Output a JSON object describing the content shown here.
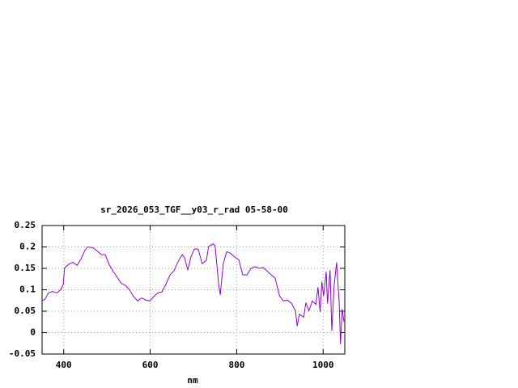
{
  "chart_data": {
    "type": "line",
    "title": "sr_2026_053_TGF__y03_r_rad 05-58-00",
    "x_label": "nm",
    "x": [
      350,
      356,
      365,
      374,
      384,
      393,
      399,
      402,
      412,
      421,
      431,
      440,
      449,
      455,
      468,
      477,
      487,
      496,
      505,
      515,
      524,
      533,
      543,
      552,
      561,
      571,
      580,
      590,
      599,
      608,
      618,
      627,
      636,
      646,
      655,
      664,
      674,
      679,
      687,
      694,
      702,
      711,
      720,
      730,
      735,
      745,
      750,
      758,
      762,
      769,
      777,
      786,
      796,
      805,
      814,
      824,
      833,
      843,
      852,
      861,
      870,
      880,
      889,
      899,
      908,
      917,
      927,
      936,
      940,
      945,
      955,
      960,
      967,
      975,
      983,
      988,
      993,
      997,
      1001,
      1007,
      1010,
      1016,
      1020,
      1025,
      1031,
      1037,
      1040,
      1044,
      1048
    ],
    "series": [
      {
        "color": "#9400d3",
        "values": [
          0.075,
          0.077,
          0.093,
          0.096,
          0.093,
          0.1,
          0.113,
          0.151,
          0.16,
          0.164,
          0.157,
          0.172,
          0.192,
          0.2,
          0.198,
          0.191,
          0.182,
          0.182,
          0.159,
          0.142,
          0.129,
          0.115,
          0.11,
          0.1,
          0.085,
          0.074,
          0.081,
          0.076,
          0.074,
          0.084,
          0.093,
          0.095,
          0.112,
          0.135,
          0.144,
          0.165,
          0.182,
          0.176,
          0.146,
          0.176,
          0.195,
          0.195,
          0.161,
          0.169,
          0.201,
          0.207,
          0.203,
          0.116,
          0.088,
          0.161,
          0.189,
          0.185,
          0.176,
          0.17,
          0.135,
          0.135,
          0.15,
          0.154,
          0.15,
          0.152,
          0.144,
          0.135,
          0.127,
          0.086,
          0.074,
          0.076,
          0.068,
          0.051,
          0.015,
          0.043,
          0.036,
          0.07,
          0.051,
          0.074,
          0.066,
          0.106,
          0.048,
          0.119,
          0.085,
          0.142,
          0.068,
          0.146,
          0.004,
          0.106,
          0.164,
          0.072,
          -0.027,
          0.055,
          0.026
        ]
      }
    ],
    "xlim": [
      350,
      1050
    ],
    "xticks": [
      400,
      600,
      800,
      1000
    ],
    "ylim": [
      -0.05,
      0.25
    ],
    "yticks": [
      0.25,
      0.2,
      0.15,
      0.1,
      0.05,
      0,
      -0.05
    ],
    "grid": true
  }
}
